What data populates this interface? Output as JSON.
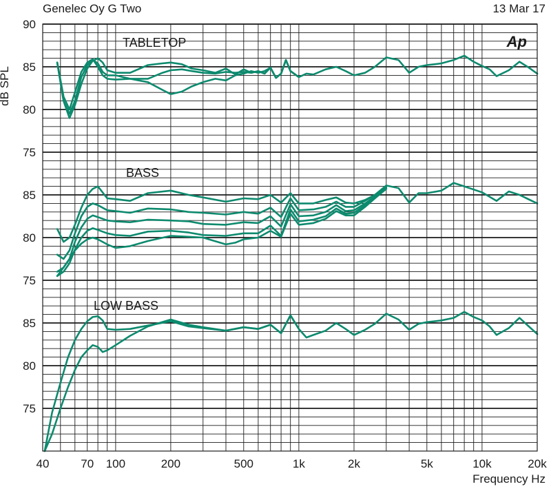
{
  "header": {
    "title": "Genelec Oy G Two",
    "date": "13 Mar 17"
  },
  "logo_text": "Ap",
  "chart_data": {
    "type": "line",
    "title": "Genelec Oy G Two",
    "xlabel": "Frequency Hz",
    "ylabel": "dB SPL",
    "xscale": "log",
    "xlim": [
      40,
      20000
    ],
    "x_tick_labels": [
      {
        "value": 40,
        "label": "40"
      },
      {
        "value": 70,
        "label": "70"
      },
      {
        "value": 100,
        "label": "100"
      },
      {
        "value": 200,
        "label": "200"
      },
      {
        "value": 500,
        "label": "500"
      },
      {
        "value": 1000,
        "label": "1k"
      },
      {
        "value": 2000,
        "label": "2k"
      },
      {
        "value": 5000,
        "label": "5k"
      },
      {
        "value": 10000,
        "label": "10k"
      },
      {
        "value": 20000,
        "label": "20k"
      }
    ],
    "grid": true,
    "line_color": "#0d8a6e",
    "panels": [
      {
        "label": "TABLETOP",
        "ylim": [
          75,
          90
        ],
        "y_ticks": [
          75,
          80,
          85,
          90
        ],
        "series": [
          {
            "x": [
              48,
              52,
              56,
              60,
              65,
              70,
              75,
              80,
              85,
              90,
              100,
              120,
              150,
              180,
              200,
              230,
              260,
              300,
              350,
              400,
              450,
              500,
              550,
              600,
              650,
              700,
              750,
              800,
              850,
              900,
              1000,
              1100,
              1200,
              1400,
              1600,
              1800,
              2000,
              2300,
              2600,
              3000,
              3500,
              4000,
              4500,
              5000,
              5500,
              6000,
              7000,
              8000,
              9000,
              10000,
              11000,
              12000,
              14000,
              16000,
              18000,
              20000
            ],
            "y": [
              85.5,
              81,
              79,
              80.5,
              83,
              84.8,
              85.7,
              86,
              85.5,
              84.6,
              84.3,
              84.3,
              85.2,
              85.4,
              85.5,
              85.3,
              84.8,
              84.6,
              84.3,
              84.8,
              84.1,
              84.7,
              84.3,
              84.5,
              84.2,
              84.9,
              83.7,
              84.2,
              85.8,
              84.5,
              83.8,
              84.2,
              84.1,
              84.7,
              85,
              84.5,
              84,
              84.3,
              85,
              86.1,
              85.8,
              84.3,
              85,
              85.2,
              85.3,
              85.4,
              85.8,
              86.3,
              85.6,
              85.1,
              84.7,
              83.9,
              84.6,
              85.6,
              84.9,
              84.2
            ]
          },
          {
            "x": [
              48,
              52,
              56,
              60,
              65,
              70,
              75,
              80,
              85,
              90,
              100,
              120,
              150,
              180,
              200,
              230,
              260,
              300,
              350,
              400,
              450,
              500,
              550,
              600,
              650,
              700,
              750,
              800,
              850,
              900,
              1000
            ],
            "y": [
              85.5,
              81,
              79.5,
              81,
              83.8,
              85.2,
              85.8,
              85.4,
              84.4,
              84,
              84,
              83.6,
              83.2,
              82.3,
              81.8,
              82.1,
              82.7,
              83.2,
              83.6,
              83.4,
              84,
              84.2,
              84.5,
              84.3,
              84.5,
              84.9,
              83.7,
              84.2,
              85.8,
              84.5,
              83.8
            ]
          },
          {
            "x": [
              48,
              52,
              56,
              60,
              65,
              70,
              75,
              80,
              85,
              90,
              100,
              120,
              150,
              180,
              200,
              230,
              260,
              300,
              350,
              400,
              450,
              500,
              550,
              600,
              650,
              700,
              750,
              800,
              850,
              900,
              1000
            ],
            "y": [
              85.5,
              81.5,
              80,
              82,
              84.4,
              85.5,
              85.9,
              85,
              84,
              83.6,
              83.5,
              83.6,
              83.6,
              84.3,
              84.6,
              84.7,
              84.5,
              84.3,
              84.2,
              84.4,
              84.3,
              84.4,
              84.3,
              84.5,
              84.2,
              84.9,
              83.7,
              84.2,
              85.8,
              84.5,
              83.8
            ]
          }
        ]
      },
      {
        "label": "BASS",
        "ylim": [
          75,
          90
        ],
        "y_ticks": [
          75,
          80,
          85
        ],
        "series": [
          {
            "x": [
              48,
              52,
              56,
              60,
              65,
              70,
              75,
              80,
              90,
              100,
              120,
              150,
              200,
              250,
              300,
              400,
              500,
              600,
              700,
              800,
              900,
              1000,
              1200,
              1400,
              1600,
              1800,
              2000,
              2300,
              2600,
              3000,
              3500,
              4000,
              4500,
              5000,
              6000,
              7000,
              8000,
              10000,
              12000,
              14000,
              16000,
              20000
            ],
            "y": [
              81,
              79.5,
              80,
              81.5,
              83.5,
              85,
              85.7,
              86,
              84.6,
              84.5,
              84.3,
              85.2,
              85.5,
              85,
              84.7,
              84.2,
              84.6,
              84.5,
              85,
              84.1,
              85.2,
              84,
              84,
              84.4,
              84.7,
              84.1,
              84,
              84.4,
              85,
              86.1,
              85.8,
              84.1,
              85.2,
              85.2,
              85.5,
              86.4,
              86,
              85.3,
              84.3,
              85.4,
              85,
              84
            ]
          },
          {
            "x": [
              48,
              52,
              56,
              60,
              65,
              70,
              75,
              80,
              90,
              100,
              120,
              150,
              200,
              250,
              300,
              400,
              500,
              600,
              700,
              800,
              900,
              1000,
              1200,
              1400,
              1600,
              1800,
              2000,
              2300,
              2600,
              3000
            ],
            "y": [
              78,
              77.5,
              78.5,
              80.5,
              82.5,
              83.6,
              84,
              83.8,
              83.2,
              83.1,
              82.9,
              83.4,
              83.3,
              83,
              82.9,
              82.7,
              83,
              82.8,
              83.5,
              82.4,
              84.6,
              83.2,
              83.3,
              83.6,
              84.2,
              83.6,
              83.6,
              84.3,
              85,
              86
            ]
          },
          {
            "x": [
              48,
              52,
              56,
              60,
              65,
              70,
              75,
              80,
              90,
              100,
              120,
              150,
              200,
              250,
              300,
              400,
              500,
              600,
              700,
              800,
              900,
              1000,
              1200,
              1400,
              1600,
              1800,
              2000,
              2300,
              2600,
              3000
            ],
            "y": [
              76,
              76.5,
              77.5,
              79.5,
              81.2,
              82.2,
              82.6,
              82.4,
              82,
              81.9,
              81.8,
              82.1,
              82,
              81.9,
              81.6,
              81.5,
              81.8,
              81.7,
              82.5,
              81.3,
              83.9,
              82.5,
              82.6,
              83,
              83.8,
              83.1,
              83.2,
              84,
              84.8,
              85.9
            ]
          },
          {
            "x": [
              48,
              52,
              56,
              60,
              65,
              70,
              75,
              80,
              90,
              100,
              120,
              150,
              200,
              250,
              300,
              400,
              500,
              600,
              700,
              800,
              900,
              1000,
              1200,
              1400,
              1600,
              1800,
              2000,
              2300,
              2600,
              3000
            ],
            "y": [
              75.5,
              76,
              77,
              78.6,
              80,
              80.8,
              81.1,
              80.9,
              80.5,
              80.3,
              80.2,
              80.7,
              80.8,
              80.6,
              80.3,
              80.2,
              80.5,
              80.5,
              81.4,
              80.2,
              83.3,
              81.9,
              82.1,
              82.5,
              83.4,
              82.8,
              82.9,
              83.8,
              84.7,
              85.8
            ]
          },
          {
            "x": [
              48,
              52,
              56,
              60,
              65,
              70,
              75,
              80,
              90,
              100,
              120,
              150,
              200,
              250,
              300,
              400,
              450,
              500,
              600,
              700,
              800,
              900,
              1000,
              1200,
              1400,
              1600,
              1800,
              2000,
              2300,
              2600,
              3000
            ],
            "y": [
              75.5,
              76.5,
              77.5,
              78.5,
              79.3,
              79.8,
              80,
              79.8,
              79.2,
              78.8,
              79,
              79.6,
              80.2,
              80.1,
              80,
              79.2,
              79.4,
              79.8,
              80,
              80.8,
              80.1,
              82.8,
              81.5,
              81.7,
              82.2,
              83.1,
              82.6,
              82.6,
              83.6,
              84.6,
              85.7
            ]
          }
        ]
      },
      {
        "label": "LOW BASS",
        "ylim": [
          70,
          90
        ],
        "y_ticks": [
          75,
          80,
          85
        ],
        "series": [
          {
            "x": [
              41,
              45,
              50,
              55,
              60,
              65,
              70,
              75,
              80,
              85,
              90,
              100,
              120,
              150,
              200,
              250,
              300,
              400,
              500,
              600,
              700,
              800,
              900,
              1000,
              1100,
              1200,
              1400,
              1600,
              1800,
              2000,
              2300,
              2600,
              3000,
              3500,
              4000,
              4500,
              5000,
              6000,
              7000,
              8000,
              9000,
              10000,
              11000,
              12000,
              14000,
              16000,
              18000,
              20000
            ],
            "y": [
              70,
              74.5,
              78,
              81,
              83,
              84.3,
              85.2,
              85.7,
              85.8,
              85.3,
              84.3,
              84.2,
              84.3,
              84.7,
              85.2,
              84.6,
              84.4,
              84.1,
              84.5,
              84.3,
              84.8,
              83.8,
              85.9,
              84.3,
              83.3,
              83.6,
              84.1,
              85,
              84.3,
              83.6,
              84.2,
              84.9,
              86.1,
              85.4,
              84.2,
              84.9,
              85.1,
              85.3,
              85.6,
              86.3,
              85.7,
              85.3,
              84.6,
              83.6,
              84.4,
              85.6,
              84.6,
              83.7
            ]
          },
          {
            "x": [
              41,
              45,
              50,
              55,
              60,
              65,
              70,
              75,
              80,
              85,
              90,
              100,
              120,
              150,
              200,
              250,
              300,
              400,
              500,
              600,
              700,
              800,
              900,
              1000
            ],
            "y": [
              70,
              72,
              75,
              77.5,
              79.5,
              81,
              81.8,
              82.4,
              82.2,
              81.6,
              81.8,
              82.4,
              83.5,
              84.6,
              85.4,
              84.8,
              84.5,
              84.1,
              84.5,
              84.3,
              84.8,
              83.8,
              85.9,
              84.3
            ]
          }
        ]
      }
    ]
  }
}
